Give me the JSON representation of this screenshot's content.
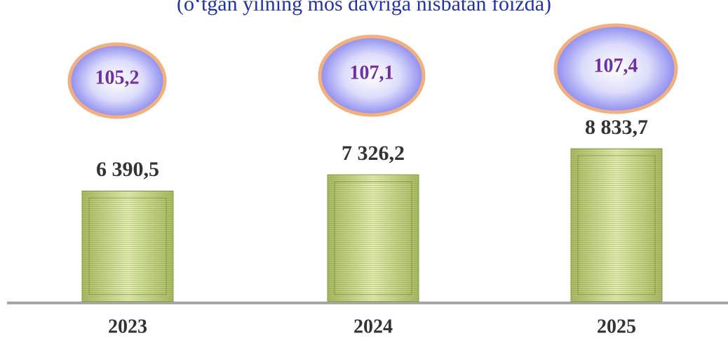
{
  "chart_data": {
    "type": "bar",
    "subtitle": "(o‘tgan yilning mos davriga nisbatan foizda)",
    "categories": [
      "2023",
      "2024",
      "2025"
    ],
    "values": [
      6390.5,
      7326.2,
      8833.7
    ],
    "value_labels": [
      "6 390,5",
      "7 326,2",
      "8 833,7"
    ],
    "color": "#c9d98c",
    "growth": {
      "values": [
        105.2,
        107.1,
        107.4
      ],
      "value_labels": [
        "105,2",
        "107,1",
        "107,4"
      ],
      "color": "#7030a0"
    }
  }
}
